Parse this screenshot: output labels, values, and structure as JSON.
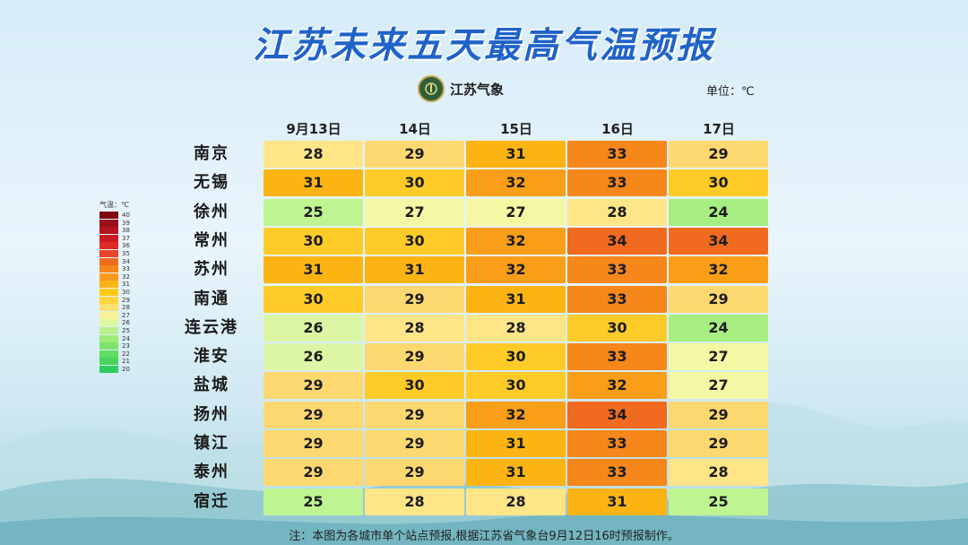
{
  "title": "江苏未来五天最高气温预报",
  "logo_text": "江苏气象",
  "unit_label": "单位：℃",
  "legend_title": "气温：℃",
  "note": "注：本图为各城市单个站点预报,根据江苏省气象台9月12日16时预报制作。",
  "chart_data": {
    "type": "heatmap",
    "title": "江苏未来五天最高气温预报",
    "columns": [
      "9月13日",
      "14日",
      "15日",
      "16日",
      "17日"
    ],
    "rows": [
      "南京",
      "无锡",
      "徐州",
      "常州",
      "苏州",
      "南通",
      "连云港",
      "淮安",
      "盐城",
      "扬州",
      "镇江",
      "泰州",
      "宿迁"
    ],
    "values": [
      [
        28,
        29,
        31,
        33,
        29
      ],
      [
        31,
        30,
        32,
        33,
        30
      ],
      [
        25,
        27,
        27,
        28,
        24
      ],
      [
        30,
        30,
        32,
        34,
        34
      ],
      [
        31,
        31,
        32,
        33,
        32
      ],
      [
        30,
        29,
        31,
        33,
        29
      ],
      [
        26,
        28,
        28,
        30,
        24
      ],
      [
        26,
        29,
        30,
        33,
        27
      ],
      [
        29,
        30,
        30,
        32,
        27
      ],
      [
        29,
        29,
        32,
        34,
        29
      ],
      [
        29,
        29,
        31,
        33,
        29
      ],
      [
        29,
        29,
        31,
        33,
        28
      ],
      [
        25,
        28,
        28,
        31,
        25
      ]
    ],
    "unit": "℃",
    "legend": {
      "values": [
        40,
        39,
        38,
        37,
        36,
        35,
        34,
        33,
        32,
        31,
        30,
        29,
        28,
        27,
        26,
        25,
        24,
        23,
        22,
        21,
        20
      ],
      "colors": [
        "#7d0a12",
        "#99101a",
        "#b5131f",
        "#cc1a22",
        "#dd2a24",
        "#e8452a",
        "#f06a1e",
        "#f4861b",
        "#f89b1a",
        "#fbb416",
        "#fdcb14",
        "#fdd53f",
        "#fce071",
        "#f7f199",
        "#def7a2",
        "#b9f18c",
        "#9deb78",
        "#7fe26a",
        "#62db62",
        "#49d35e",
        "#2fcb5e"
      ]
    },
    "cell_colors": {
      "24": "#a6ee82",
      "25": "#bff493",
      "26": "#dcf6a6",
      "27": "#f4f8a4",
      "28": "#fde588",
      "29": "#fdd870",
      "30": "#fecb29",
      "31": "#fbb414",
      "32": "#f99e19",
      "33": "#f5871b",
      "34": "#f06a20"
    }
  }
}
